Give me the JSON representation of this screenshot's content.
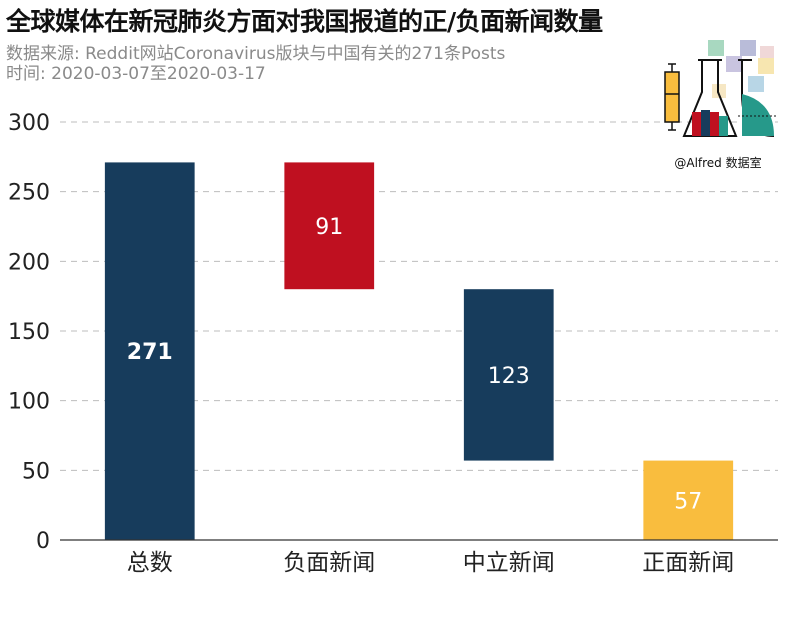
{
  "chart_data": {
    "type": "bar",
    "variant": "waterfall",
    "title": "全球媒体在新冠肺炎方面对我国报道的正/负面新闻数量",
    "subtitle_lines": [
      "数据来源: Reddit网站Coronavirus版块与中国有关的271条Posts",
      "时间: 2020-03-07至2020-03-17"
    ],
    "categories": [
      "总数",
      "负面新闻",
      "中立新闻",
      "正面新闻"
    ],
    "values": [
      271,
      91,
      123,
      57
    ],
    "bar_ranges": [
      [
        0,
        271
      ],
      [
        180,
        271
      ],
      [
        57,
        180
      ],
      [
        0,
        57
      ]
    ],
    "data_labels": [
      "271",
      "91",
      "123",
      "57"
    ],
    "colors": [
      "#173c5c",
      "#bf1020",
      "#173c5c",
      "#f9bd3e"
    ],
    "label_colors": [
      "#ffffff",
      "#ffffff",
      "#ffffff",
      "#ffffff"
    ],
    "ylim": [
      0,
      300
    ],
    "yticks": [
      0,
      50,
      100,
      150,
      200,
      250,
      300
    ],
    "grid": true,
    "legend": "none"
  },
  "watermark": {
    "caption": "@Alfred 数据室",
    "icon": "lab-flask-chart-logo"
  }
}
